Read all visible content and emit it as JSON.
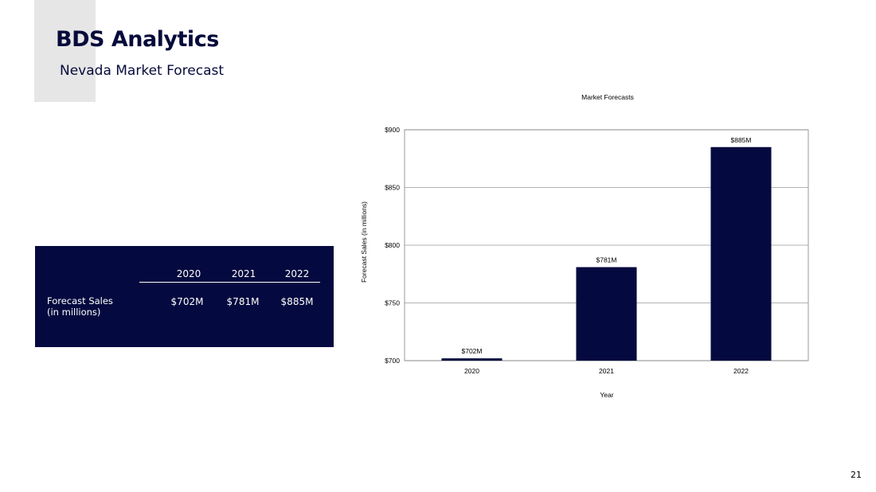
{
  "header": {
    "title": "BDS Analytics",
    "subtitle": "Nevada Market Forecast"
  },
  "table": {
    "columns": [
      "2020",
      "2021",
      "2022"
    ],
    "row_label_line1": "Forecast Sales",
    "row_label_line2": "(in millions)",
    "values": [
      "$702M",
      "$781M",
      "$885M"
    ]
  },
  "chart_data": {
    "type": "bar",
    "title": "Market Forecasts",
    "xlabel": "Year",
    "ylabel": "Forecast Sales (in millions)",
    "categories": [
      "2020",
      "2021",
      "2022"
    ],
    "values": [
      702,
      781,
      885
    ],
    "data_labels": [
      "$702M",
      "$781M",
      "$885M"
    ],
    "ylim": [
      700,
      900
    ],
    "yticks": [
      700,
      750,
      800,
      850,
      900
    ],
    "ytick_labels": [
      "$700",
      "$750",
      "$800",
      "$850",
      "$900"
    ],
    "grid": true,
    "legend": "none",
    "bar_color": "#040a3f"
  },
  "footer": {
    "page_number": "21"
  }
}
